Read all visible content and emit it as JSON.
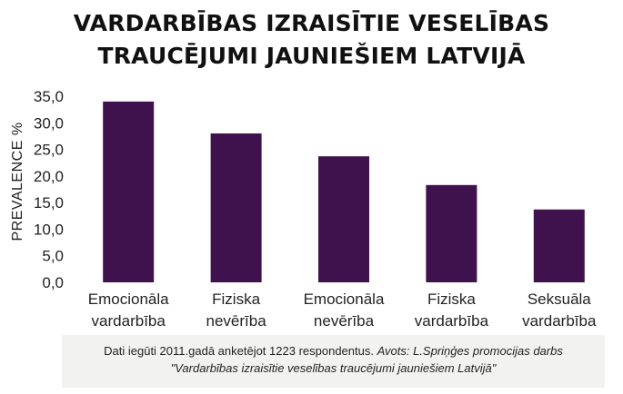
{
  "chart_data": {
    "type": "bar",
    "title_lines": [
      "VARDARBĪBAS IZRAISĪTIE VESELĪBAS",
      "TRAUCĒJUMI JAUNIEŠIEM LATVIJĀ"
    ],
    "ylabel": "PREVALENCE %",
    "xlabel": "",
    "ylim": [
      0,
      35
    ],
    "yticks": [
      "0,0",
      "5,0",
      "10,0",
      "15,0",
      "20,0",
      "25,0",
      "30,0",
      "35,0"
    ],
    "categories": [
      [
        "Emocionāla",
        "vardarbība"
      ],
      [
        "Fiziska",
        "nevērība"
      ],
      [
        "Emocionāla",
        "nevērība"
      ],
      [
        "Fiziska",
        "vardarbība"
      ],
      [
        "Seksuāla",
        "vardarbība"
      ]
    ],
    "values": [
      34.0,
      28.0,
      23.7,
      18.3,
      13.7
    ],
    "bar_color": "#3f124d",
    "grid": false,
    "legend": "none"
  },
  "footnote": {
    "plain": "Dati iegūti 2011.gadā anketējot 1223 respondentus.",
    "italic_1": "Avots: L.Spriņģes promocijas darbs",
    "italic_2": "\"Vardarbības izraisītie veselības traucējumi jauniešiem Latvijā\""
  }
}
